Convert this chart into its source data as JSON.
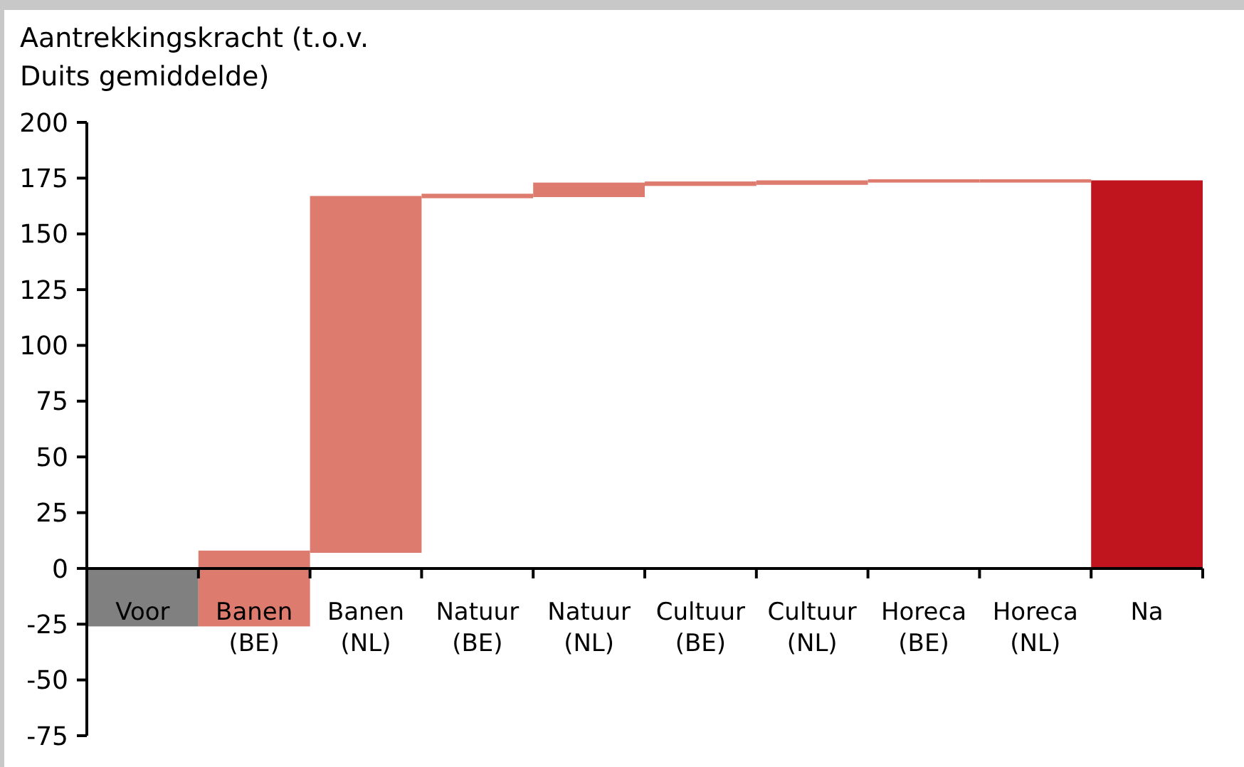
{
  "chart_data": {
    "type": "bar",
    "ylabel": "Aantrekkingskracht (t.o.v. Duits gemiddelde)",
    "categories": [
      "Voor",
      "Banen (BE)",
      "Banen (NL)",
      "Natuur (BE)",
      "Natuur (NL)",
      "Cultuur (BE)",
      "Cultuur (NL)",
      "Horeca (BE)",
      "Horeca (NL)",
      "Na"
    ],
    "values": [
      -26,
      34,
      160,
      2,
      6.5,
      2,
      2,
      1.5,
      1.5,
      174
    ],
    "base": [
      0,
      -26,
      7,
      166,
      166.5,
      171.5,
      172,
      173,
      173,
      0
    ],
    "colors": [
      "#808080",
      "#dd7b6f",
      "#dd7b6f",
      "#dd7b6f",
      "#dd7b6f",
      "#dd7b6f",
      "#dd7b6f",
      "#dd7b6f",
      "#dd7b6f",
      "#c0141f"
    ],
    "ylim": [
      -75,
      200
    ],
    "yticks": [
      -75,
      -50,
      -25,
      0,
      25,
      50,
      75,
      100,
      125,
      150,
      175,
      200
    ]
  }
}
